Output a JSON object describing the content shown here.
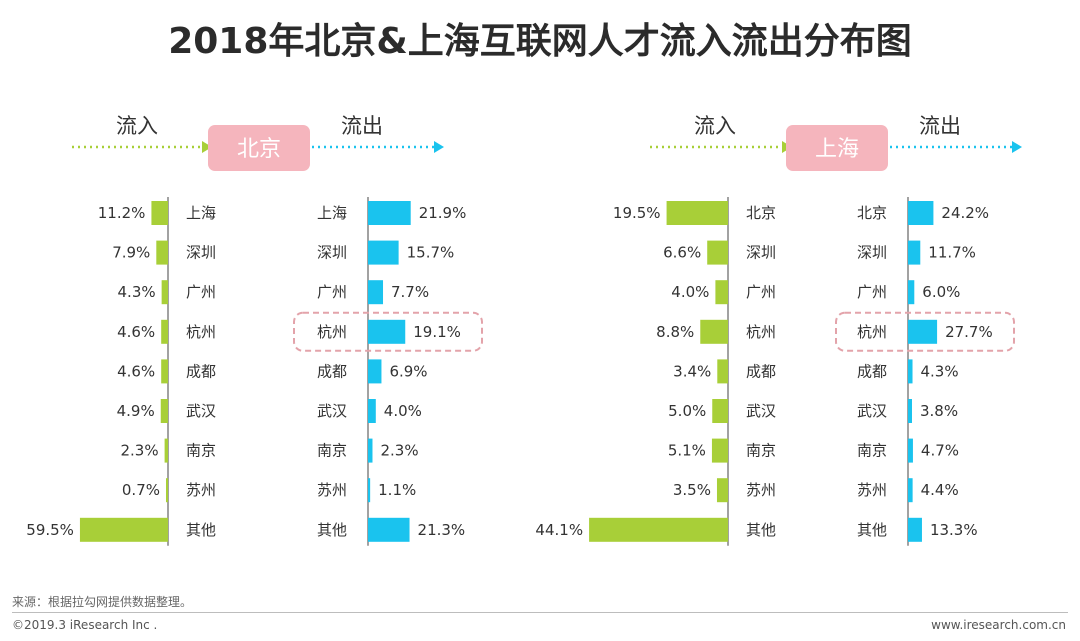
{
  "title": "2018年北京&上海互联网人才流入流出分布图",
  "colors": {
    "inflow": "#a8cf38",
    "outflow": "#1ac3ee",
    "badge": "#f5b5bd",
    "highlight": "#e3a3aa",
    "axis": "#444444"
  },
  "chart_data": [
    {
      "type": "bar",
      "city": "北京",
      "inflow_label": "流入",
      "outflow_label": "流出",
      "inflow": {
        "categories": [
          "上海",
          "深圳",
          "广州",
          "杭州",
          "成都",
          "武汉",
          "南京",
          "苏州",
          "其他"
        ],
        "values": [
          11.2,
          7.9,
          4.3,
          4.6,
          4.6,
          4.9,
          2.3,
          0.7,
          59.5
        ],
        "labels": [
          "11.2%",
          "7.9%",
          "4.3%",
          "4.6%",
          "4.6%",
          "4.9%",
          "2.3%",
          "0.7%",
          "59.5%"
        ]
      },
      "outflow": {
        "categories": [
          "上海",
          "深圳",
          "广州",
          "杭州",
          "成都",
          "武汉",
          "南京",
          "苏州",
          "其他"
        ],
        "values": [
          21.9,
          15.7,
          7.7,
          19.1,
          6.9,
          4.0,
          2.3,
          1.1,
          21.3
        ],
        "labels": [
          "21.9%",
          "15.7%",
          "7.7%",
          "19.1%",
          "6.9%",
          "4.0%",
          "2.3%",
          "1.1%",
          "21.3%"
        ]
      },
      "highlight": "杭州"
    },
    {
      "type": "bar",
      "city": "上海",
      "inflow_label": "流入",
      "outflow_label": "流出",
      "inflow": {
        "categories": [
          "北京",
          "深圳",
          "广州",
          "杭州",
          "成都",
          "武汉",
          "南京",
          "苏州",
          "其他"
        ],
        "values": [
          19.5,
          6.6,
          4.0,
          8.8,
          3.4,
          5.0,
          5.1,
          3.5,
          44.1
        ],
        "labels": [
          "19.5%",
          "6.6%",
          "4.0%",
          "8.8%",
          "3.4%",
          "5.0%",
          "5.1%",
          "3.5%",
          "44.1%"
        ]
      },
      "outflow": {
        "categories": [
          "北京",
          "深圳",
          "广州",
          "杭州",
          "成都",
          "武汉",
          "南京",
          "苏州",
          "其他"
        ],
        "values": [
          24.2,
          11.7,
          6.0,
          27.7,
          4.3,
          3.8,
          4.7,
          4.4,
          13.3
        ],
        "labels": [
          "24.2%",
          "11.7%",
          "6.0%",
          "27.7%",
          "4.3%",
          "3.8%",
          "4.7%",
          "4.4%",
          "13.3%"
        ]
      },
      "highlight": "杭州"
    }
  ],
  "footer": {
    "source": "来源：根据拉勾网提供数据整理。",
    "copyright": "©2019.3 iResearch Inc .",
    "website": "www.iresearch.com.cn"
  }
}
